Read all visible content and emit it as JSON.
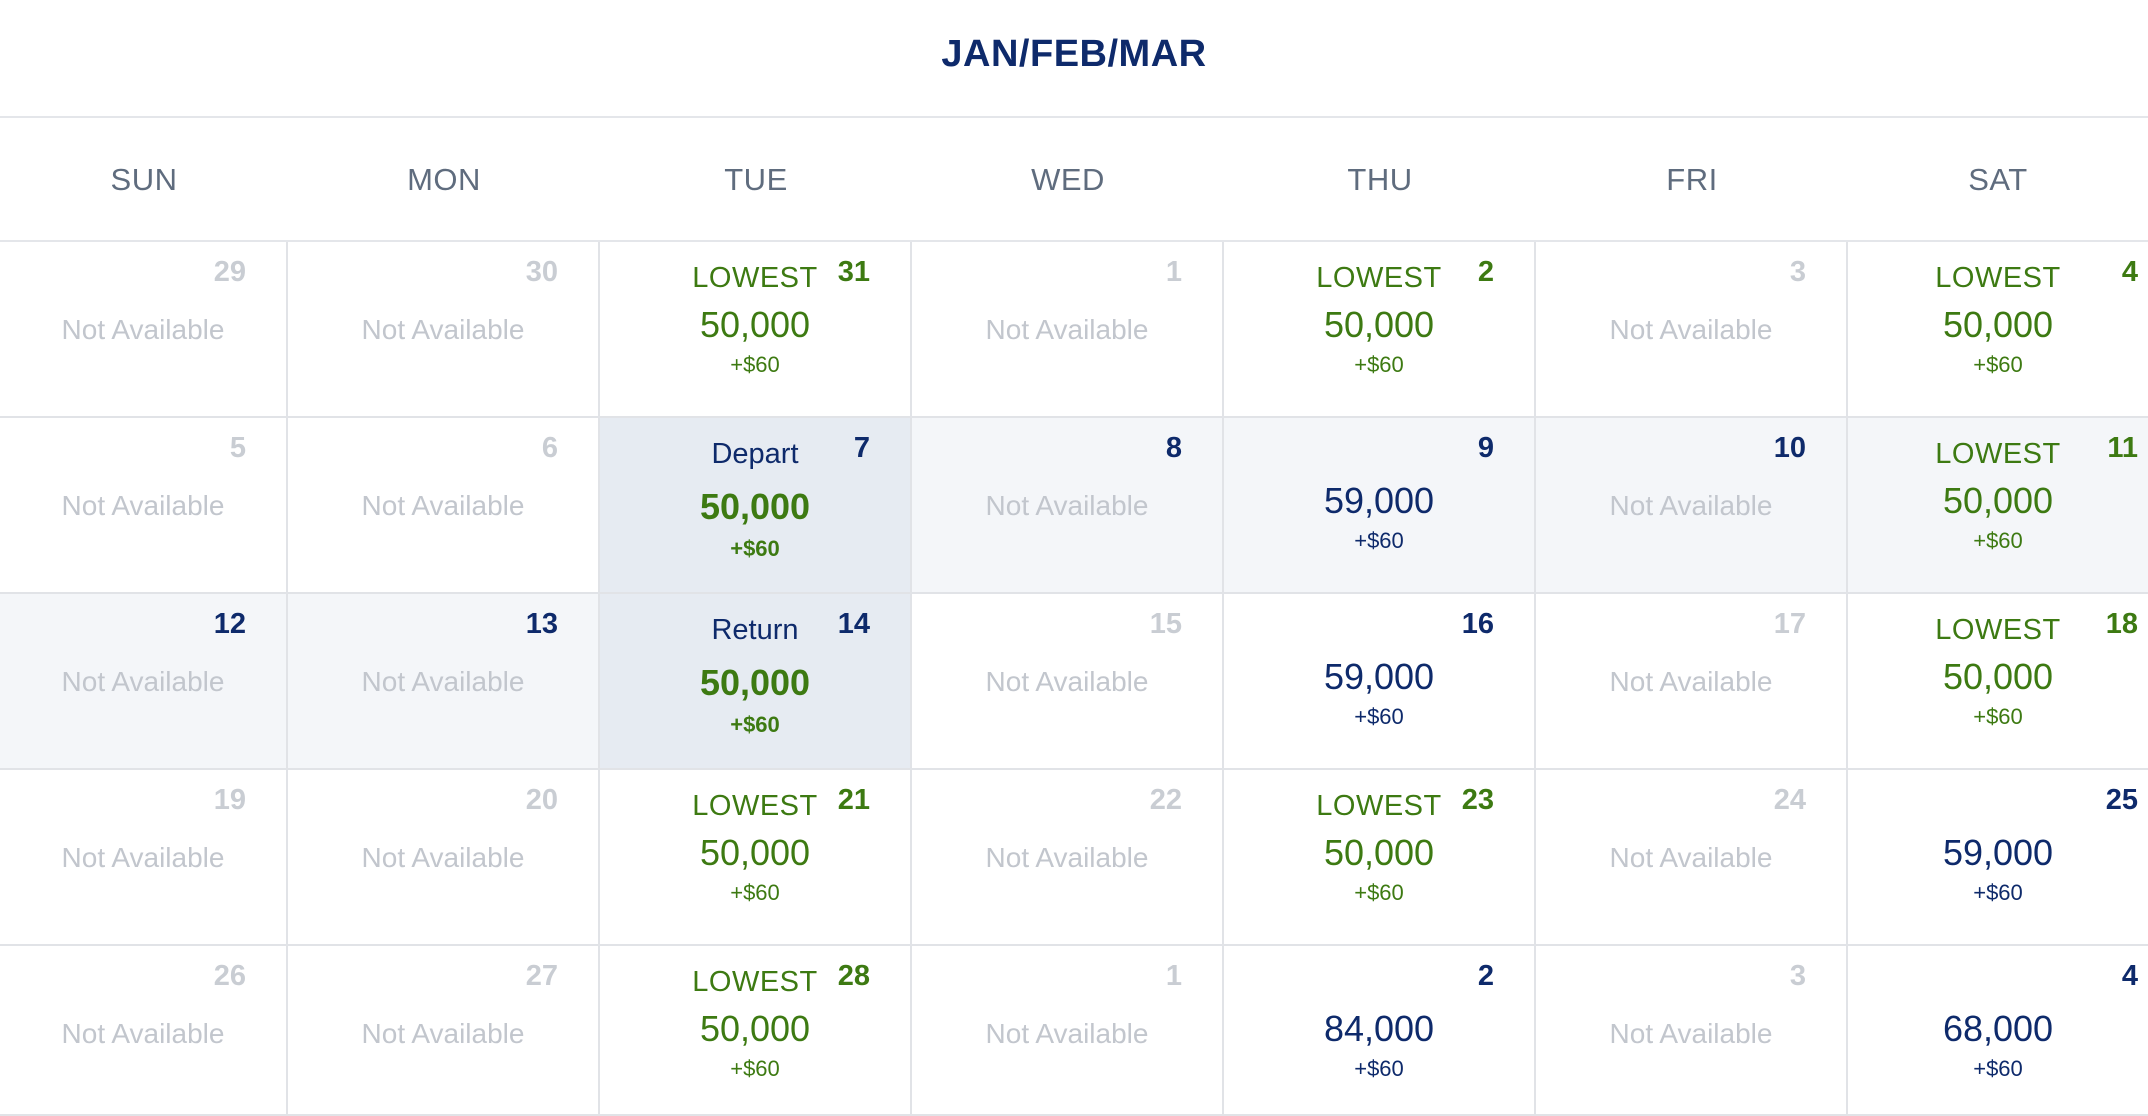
{
  "title": "JAN/FEB/MAR",
  "weekdays": [
    "SUN",
    "MON",
    "TUE",
    "WED",
    "THU",
    "FRI",
    "SAT"
  ],
  "colors": {
    "navy": "#0e2a6b",
    "green": "#3d7a12",
    "muted": "#c2c6cd",
    "range_bg": "#f4f6f9",
    "selected_bg": "#e6ebf2"
  },
  "weeks": [
    [
      {
        "day": "29",
        "kind": "na",
        "label": "Not Available"
      },
      {
        "day": "30",
        "kind": "na",
        "label": "Not Available"
      },
      {
        "day": "31",
        "kind": "lowest",
        "tag": "LOWEST",
        "price": "50,000",
        "fee": "+$60"
      },
      {
        "day": "1",
        "kind": "na",
        "label": "Not Available"
      },
      {
        "day": "2",
        "kind": "lowest",
        "tag": "LOWEST",
        "price": "50,000",
        "fee": "+$60"
      },
      {
        "day": "3",
        "kind": "na",
        "label": "Not Available"
      },
      {
        "day": "4",
        "kind": "lowest",
        "tag": "LOWEST",
        "price": "50,000",
        "fee": "+$60"
      }
    ],
    [
      {
        "day": "5",
        "kind": "na",
        "label": "Not Available"
      },
      {
        "day": "6",
        "kind": "na",
        "label": "Not Available"
      },
      {
        "day": "7",
        "kind": "selected",
        "tag": "Depart",
        "price": "50,000",
        "fee": "+$60"
      },
      {
        "day": "8",
        "kind": "na-range",
        "label": "Not Available"
      },
      {
        "day": "9",
        "kind": "price-range",
        "price": "59,000",
        "fee": "+$60"
      },
      {
        "day": "10",
        "kind": "na-range",
        "label": "Not Available"
      },
      {
        "day": "11",
        "kind": "lowest-range",
        "tag": "LOWEST",
        "price": "50,000",
        "fee": "+$60"
      }
    ],
    [
      {
        "day": "12",
        "kind": "na-range",
        "label": "Not Available"
      },
      {
        "day": "13",
        "kind": "na-range",
        "label": "Not Available"
      },
      {
        "day": "14",
        "kind": "selected",
        "tag": "Return",
        "price": "50,000",
        "fee": "+$60"
      },
      {
        "day": "15",
        "kind": "na",
        "label": "Not Available"
      },
      {
        "day": "16",
        "kind": "price",
        "price": "59,000",
        "fee": "+$60"
      },
      {
        "day": "17",
        "kind": "na",
        "label": "Not Available"
      },
      {
        "day": "18",
        "kind": "lowest",
        "tag": "LOWEST",
        "price": "50,000",
        "fee": "+$60"
      }
    ],
    [
      {
        "day": "19",
        "kind": "na",
        "label": "Not Available"
      },
      {
        "day": "20",
        "kind": "na",
        "label": "Not Available"
      },
      {
        "day": "21",
        "kind": "lowest",
        "tag": "LOWEST",
        "price": "50,000",
        "fee": "+$60"
      },
      {
        "day": "22",
        "kind": "na",
        "label": "Not Available"
      },
      {
        "day": "23",
        "kind": "lowest",
        "tag": "LOWEST",
        "price": "50,000",
        "fee": "+$60"
      },
      {
        "day": "24",
        "kind": "na",
        "label": "Not Available"
      },
      {
        "day": "25",
        "kind": "price",
        "price": "59,000",
        "fee": "+$60"
      }
    ],
    [
      {
        "day": "26",
        "kind": "na",
        "label": "Not Available"
      },
      {
        "day": "27",
        "kind": "na",
        "label": "Not Available"
      },
      {
        "day": "28",
        "kind": "lowest",
        "tag": "LOWEST",
        "price": "50,000",
        "fee": "+$60"
      },
      {
        "day": "1",
        "kind": "na",
        "label": "Not Available"
      },
      {
        "day": "2",
        "kind": "price",
        "price": "84,000",
        "fee": "+$60"
      },
      {
        "day": "3",
        "kind": "na",
        "label": "Not Available"
      },
      {
        "day": "4",
        "kind": "price",
        "price": "68,000",
        "fee": "+$60"
      }
    ]
  ]
}
